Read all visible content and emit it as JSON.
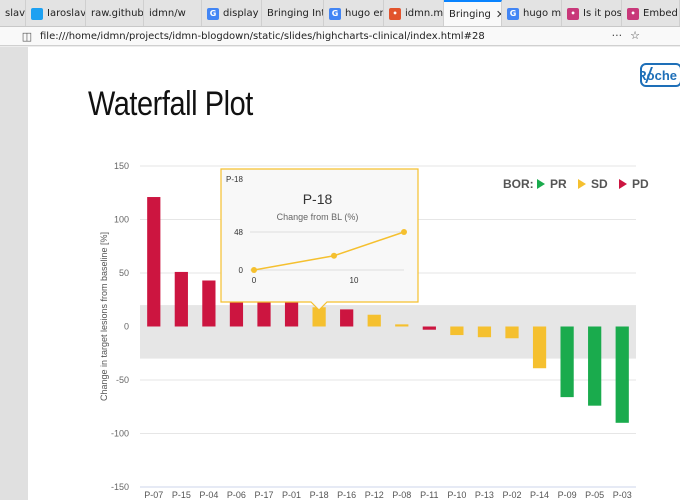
{
  "browser": {
    "tabs": [
      {
        "label": "slav t",
        "icon": "none",
        "color": "#e3e3e3",
        "active": false
      },
      {
        "label": "Iaroslav",
        "icon": "twitter-icon",
        "color": "#1da1f2",
        "active": false
      },
      {
        "label": "raw.githubu",
        "icon": "none",
        "color": "#e3e3e3",
        "active": false
      },
      {
        "label": "idmn/w",
        "icon": "none",
        "color": "#e3e3e3",
        "active": false
      },
      {
        "label": "display",
        "icon": "google-icon",
        "color": "#4285f4",
        "active": false
      },
      {
        "label": "Bringing Int",
        "icon": "none",
        "color": "#e3e3e3",
        "active": false
      },
      {
        "label": "hugo em",
        "icon": "google-icon",
        "color": "#4285f4",
        "active": false
      },
      {
        "label": "idmn.me",
        "icon": "site-icon",
        "color": "#e2542d",
        "active": false
      },
      {
        "label": "Bringing",
        "icon": "none",
        "color": "#e3e3e3",
        "active": true
      },
      {
        "label": "hugo ma",
        "icon": "google-icon",
        "color": "#4285f4",
        "active": false
      },
      {
        "label": "Is it poss",
        "icon": "site-icon",
        "color": "#c8387a",
        "active": false
      },
      {
        "label": "Embed H",
        "icon": "site-icon",
        "color": "#c8387a",
        "active": false
      }
    ],
    "url": "file:///home/idmn/projects/idmn-blogdown/static/slides/highcharts-clinical/index.html#28",
    "url_actions": [
      "···",
      "☆"
    ]
  },
  "slide": {
    "title": "Waterfall Plot",
    "logo_text": "Roche"
  },
  "chart_data": {
    "type": "bar",
    "ylabel": "Change in target lesions from baseline [%]",
    "ylim": [
      -150,
      150
    ],
    "yticks": [
      150,
      100,
      50,
      0,
      -50,
      -100,
      -150
    ],
    "reference_band": [
      -30,
      20
    ],
    "categories": [
      "P-07",
      "P-15",
      "P-04",
      "P-06",
      "P-17",
      "P-01",
      "P-18",
      "P-16",
      "P-12",
      "P-08",
      "P-11",
      "P-10",
      "P-13",
      "P-02",
      "P-14",
      "P-09",
      "P-05",
      "P-03"
    ],
    "values": [
      121,
      51,
      43,
      30,
      25,
      24,
      18,
      16,
      11,
      2,
      -3,
      -8,
      -10,
      -11,
      -39,
      -66,
      -74,
      -90
    ],
    "bor": [
      "PD",
      "PD",
      "PD",
      "PD",
      "PD",
      "PD",
      "SD",
      "PD",
      "SD",
      "SD",
      "PD",
      "SD",
      "SD",
      "SD",
      "SD",
      "PR",
      "PR",
      "PR"
    ],
    "legend": {
      "title": "BOR:",
      "entries": [
        {
          "label": "PR",
          "color": "#1aab4d"
        },
        {
          "label": "SD",
          "color": "#f5c02f"
        },
        {
          "label": "PD",
          "color": "#cc1540"
        }
      ],
      "position": "top-right"
    },
    "tooltip": {
      "corner_label": "P-18",
      "title": "P-18",
      "subtitle": "Change from BL (%)",
      "x": [
        0,
        8,
        15
      ],
      "y": [
        0,
        18,
        48
      ],
      "xticks": [
        0,
        10
      ],
      "yticks": [
        0,
        48
      ]
    }
  }
}
